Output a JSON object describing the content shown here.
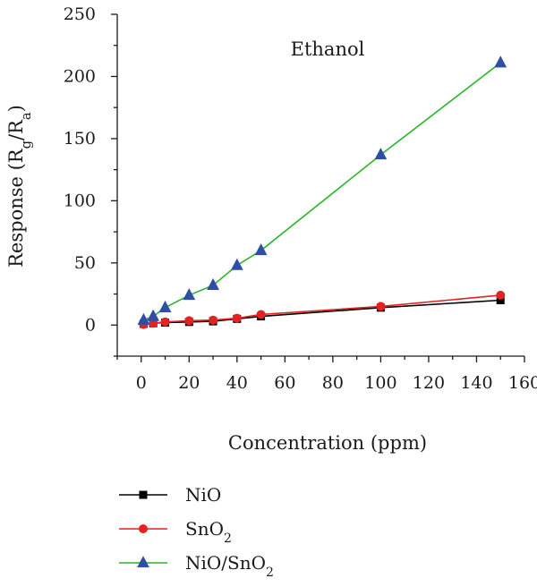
{
  "chart_data": {
    "type": "line",
    "annotation": "Ethanol",
    "xlabel": "Concentration (ppm)",
    "ylabel": "Response (R<sub>g</sub>/R<sub>a</sub>)",
    "xlim": [
      -10,
      160
    ],
    "ylim": [
      -25,
      250
    ],
    "xticks": [
      0,
      20,
      40,
      60,
      80,
      100,
      120,
      140,
      160
    ],
    "yticks": [
      0,
      50,
      100,
      150,
      200,
      250
    ],
    "grid": false,
    "legend_position": "bottom-left",
    "series": [
      {
        "name": "NiO",
        "name_html": "NiO",
        "color": "#000000",
        "marker": "square",
        "x": [
          1,
          5,
          10,
          20,
          30,
          40,
          50,
          100,
          150
        ],
        "y": [
          1,
          1.5,
          2,
          2.5,
          3,
          5,
          7,
          14,
          20
        ]
      },
      {
        "name": "SnO2",
        "name_html": "SnO<sub>2</sub>",
        "color": "#e32222",
        "marker": "circle",
        "x": [
          1,
          5,
          10,
          20,
          30,
          40,
          50,
          100,
          150
        ],
        "y": [
          0.5,
          1.5,
          2.5,
          3.5,
          4,
          5.5,
          8.5,
          15,
          24
        ]
      },
      {
        "name": "NiO/SnO2",
        "name_html": "NiO/SnO<sub>2</sub>",
        "color": "#27b52a",
        "marker_color": "#2f4fa6",
        "marker": "triangle",
        "x": [
          1,
          5,
          10,
          20,
          30,
          40,
          50,
          100,
          150
        ],
        "y": [
          4,
          7,
          14,
          24,
          32,
          48,
          60,
          137,
          211
        ]
      }
    ]
  }
}
